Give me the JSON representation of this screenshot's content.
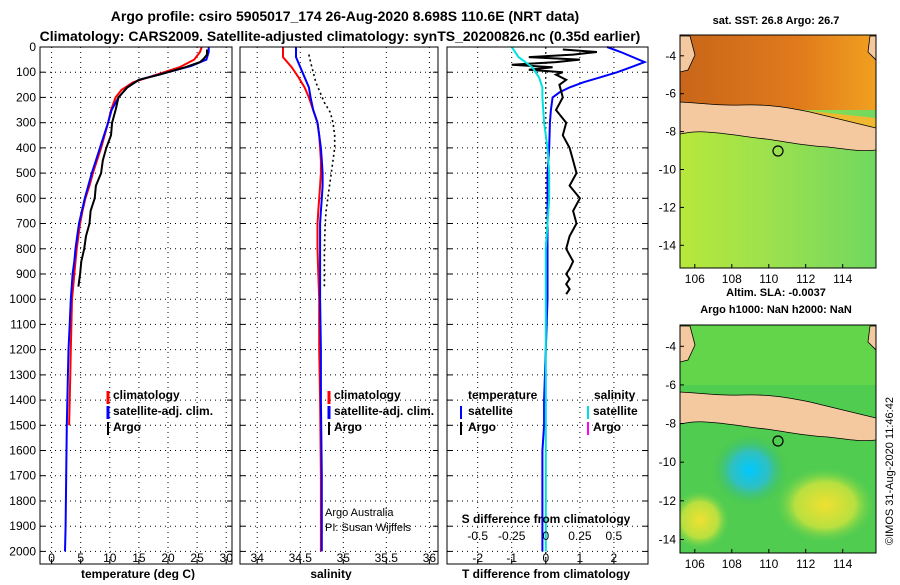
{
  "header": {
    "line1": "Argo profile: csiro 5905017_174 26-Aug-2020 8.698S 110.6E (NRT data)",
    "line2": "Climatology: CARS2009. Satellite-adjusted climatology: synTS_20200826.nc (0.35d earlier)"
  },
  "legend_temp": {
    "clim": "climatology",
    "sat": "satellite-adj. clim.",
    "argo": "Argo"
  },
  "legend_sal": {
    "clim": "climatology",
    "sat": "satellite-adj. clim.",
    "argo": "Argo"
  },
  "legend_diff": {
    "temperature": "temperature",
    "salinity": "salinity",
    "t_sat": "satellite",
    "t_argo": "Argo",
    "s_sat": "satellite",
    "s_argo": "Argo"
  },
  "credits": {
    "line1": "Argo Australia",
    "line2": "PI: Susan Wijffels"
  },
  "colors": {
    "climatology": "#ff0000",
    "satellite": "#0000ff",
    "argo": "#000000",
    "sal_satellite": "#00e0e0",
    "sal_argo": "#ff00ff",
    "land": "#f5c9a0",
    "frame": "#000000"
  },
  "maps": {
    "top": {
      "title": "sat. SST: 26.8 Argo: 26.7"
    },
    "bottom": {
      "title1": "Altim. SLA: -0.0037",
      "title2": "Argo h1000: NaN h2000: NaN"
    },
    "xticks": [
      "106",
      "108",
      "110",
      "112",
      "114"
    ],
    "yticks": [
      "-4",
      "-6",
      "-8",
      "-10",
      "-12",
      "-14"
    ]
  },
  "footer": {
    "imos": "©IMOS 31-Aug-2020 11:46:42"
  },
  "chart_data": [
    {
      "type": "line",
      "title": "",
      "xlabel": "temperature (deg C)",
      "ylabel": "",
      "xlim": [
        -2,
        31
      ],
      "ylim": [
        2050,
        0
      ],
      "xticks": [
        0,
        5,
        10,
        15,
        20,
        25,
        30
      ],
      "yticks": [
        0,
        100,
        200,
        300,
        400,
        500,
        600,
        700,
        800,
        900,
        1000,
        1100,
        1200,
        1300,
        1400,
        1500,
        1600,
        1700,
        1800,
        1900,
        2000
      ],
      "series": [
        {
          "name": "climatology",
          "color": "#ff0000",
          "x": [
            25.8,
            25.5,
            24.5,
            22,
            18,
            14,
            12,
            11,
            10.2,
            9.7,
            9.1,
            8.5,
            7.8,
            7.1,
            6.5,
            5.8,
            5.3,
            4.9,
            4.6,
            4.3,
            4.1,
            3.9,
            3.7,
            3.5,
            3.4,
            3.3,
            3.2,
            3.1,
            3.0
          ],
          "y": [
            0,
            20,
            50,
            80,
            110,
            140,
            170,
            200,
            250,
            300,
            350,
            400,
            450,
            500,
            550,
            600,
            650,
            700,
            750,
            800,
            850,
            900,
            950,
            1000,
            1100,
            1200,
            1300,
            1400,
            1500
          ]
        },
        {
          "name": "satellite-adj. clim.",
          "color": "#0000ff",
          "x": [
            27,
            27,
            26.6,
            24,
            20,
            15,
            13,
            11.5,
            10.3,
            9.7,
            9.0,
            8.3,
            7.6,
            6.9,
            6.3,
            5.7,
            5.2,
            4.7,
            4.4,
            4.1,
            3.9,
            3.6,
            3.3,
            3.1,
            2.9,
            2.8,
            2.6,
            2.5,
            2.4,
            2.3
          ],
          "y": [
            0,
            20,
            50,
            75,
            100,
            130,
            160,
            200,
            250,
            300,
            350,
            400,
            450,
            500,
            550,
            600,
            650,
            700,
            750,
            800,
            850,
            900,
            1000,
            1100,
            1200,
            1300,
            1500,
            1700,
            1900,
            2000
          ]
        },
        {
          "name": "Argo",
          "color": "#000000",
          "x": [
            26.7,
            26.7,
            26.2,
            25.5,
            23,
            20,
            18.5,
            15,
            13,
            11.5,
            11,
            10.4,
            10.2,
            9.4,
            8.8,
            8.5,
            7.6,
            7.4,
            6.7,
            6.5,
            5.9,
            5.6,
            5.1,
            4.9,
            4.6
          ],
          "y": [
            10,
            30,
            45,
            60,
            80,
            100,
            110,
            130,
            160,
            200,
            250,
            300,
            350,
            400,
            450,
            500,
            550,
            600,
            650,
            700,
            750,
            800,
            850,
            900,
            950
          ]
        }
      ]
    },
    {
      "type": "line",
      "title": "",
      "xlabel": "salinity",
      "ylabel": "",
      "xlim": [
        33.8,
        36.1
      ],
      "ylim": [
        2050,
        0
      ],
      "xticks": [
        34,
        34.5,
        35,
        35.5,
        36
      ],
      "series": [
        {
          "name": "climatology",
          "color": "#ff0000",
          "x": [
            34.3,
            34.3,
            34.4,
            34.48,
            34.55,
            34.6,
            34.65,
            34.7,
            34.72,
            34.73,
            34.74,
            34.74,
            34.73,
            34.72,
            34.71,
            34.7,
            34.7,
            34.71,
            34.72,
            34.72,
            34.73,
            34.74,
            34.74
          ],
          "y": [
            0,
            40,
            80,
            120,
            160,
            200,
            250,
            300,
            350,
            400,
            450,
            500,
            550,
            600,
            650,
            700,
            800,
            900,
            1000,
            1200,
            1400,
            1700,
            2000
          ]
        },
        {
          "name": "satellite-adj. clim.",
          "color": "#0000ff",
          "x": [
            34.45,
            34.45,
            34.5,
            34.55,
            34.6,
            34.62,
            34.65,
            34.7,
            34.72,
            34.74,
            34.75,
            34.76,
            34.76,
            34.75,
            34.74,
            34.73,
            34.73,
            34.73,
            34.73,
            34.74,
            34.74,
            34.75,
            34.75
          ],
          "y": [
            0,
            40,
            80,
            120,
            160,
            200,
            250,
            300,
            350,
            400,
            450,
            500,
            550,
            600,
            650,
            700,
            800,
            900,
            1000,
            1200,
            1400,
            1700,
            2000
          ]
        },
        {
          "name": "Argo",
          "color": "#000000",
          "dash": true,
          "x": [
            34.6,
            34.62,
            34.65,
            34.68,
            34.73,
            34.78,
            34.85,
            34.88,
            34.9,
            34.9,
            34.88,
            34.86,
            34.84,
            34.82,
            34.8,
            34.79,
            34.78,
            34.78,
            34.78,
            34.78
          ],
          "y": [
            30,
            60,
            100,
            140,
            180,
            220,
            260,
            300,
            350,
            400,
            450,
            500,
            550,
            600,
            650,
            700,
            800,
            850,
            900,
            950
          ]
        }
      ]
    },
    {
      "type": "line",
      "title": "S difference from climatology",
      "xlabel": "T difference from climatology",
      "ylabel": "",
      "xlim": [
        -2.9,
        3.0
      ],
      "ylim": [
        2050,
        0
      ],
      "xticks": [
        -2,
        -1,
        0,
        1,
        2
      ],
      "top_xticks": [
        "-0.5",
        "-0.25",
        "0",
        "0.25",
        "0.5"
      ],
      "top_xtick_positions": [
        -2,
        -1,
        0,
        1,
        2
      ],
      "series": [
        {
          "name": "temperature satellite",
          "color": "#0000ff",
          "x": [
            1.8,
            2.2,
            2.9,
            2.5,
            2.1,
            1.6,
            1.1,
            0.7,
            0.4,
            0.2,
            0.15,
            0.12,
            0.1,
            0.05,
            0.05,
            0.05,
            0.05,
            0.0,
            -0.05,
            -0.05,
            -0.1,
            -0.1,
            -0.1
          ],
          "y": [
            0,
            20,
            60,
            80,
            100,
            120,
            140,
            160,
            180,
            200,
            250,
            300,
            400,
            500,
            600,
            800,
            1000,
            1200,
            1400,
            1500,
            1600,
            1800,
            2000
          ]
        },
        {
          "name": "temperature Argo",
          "color": "#000000",
          "x": [
            0.5,
            1.5,
            0.8,
            -0.5,
            1.0,
            0.3,
            -1.0,
            0.2,
            -0.5,
            0.5,
            0.3,
            0.6,
            0.4,
            0.5,
            0.3,
            0.6,
            0.5,
            0.7,
            0.8,
            0.9,
            0.7,
            1.0,
            0.8,
            0.9,
            0.7,
            0.6,
            0.8,
            0.7,
            0.6,
            0.7,
            0.6,
            0.7,
            0.6
          ],
          "y": [
            10,
            20,
            30,
            40,
            50,
            60,
            70,
            80,
            90,
            100,
            110,
            130,
            150,
            200,
            250,
            300,
            350,
            400,
            450,
            500,
            550,
            600,
            650,
            700,
            750,
            800,
            850,
            880,
            900,
            920,
            940,
            960,
            980
          ]
        },
        {
          "name": "salinity satellite",
          "color": "#00e0e0",
          "x": [
            -1.0,
            -0.8,
            -0.4,
            -0.2,
            -0.1,
            -0.1,
            -0.05,
            0.05,
            0.1,
            0.1,
            0.05,
            0.0,
            0.0,
            0.0,
            0.0,
            0.0,
            0.0,
            0.0,
            0.0,
            0.0,
            0.0
          ],
          "y": [
            0,
            40,
            80,
            120,
            160,
            200,
            300,
            400,
            500,
            600,
            700,
            800,
            1000,
            1200,
            1400,
            1500,
            1600,
            1700,
            1800,
            1900,
            2000
          ]
        }
      ]
    }
  ]
}
